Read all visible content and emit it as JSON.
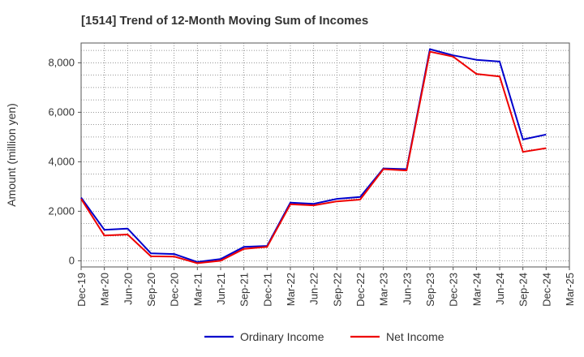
{
  "chart_data": {
    "type": "line",
    "title": "[1514]  Trend of 12-Month Moving Sum of Incomes",
    "xlabel": "",
    "ylabel": "Amount (million yen)",
    "ylim": [
      -250,
      8800
    ],
    "yticks": [
      0,
      2000,
      4000,
      6000,
      8000
    ],
    "ytick_labels": [
      "0",
      "2,000",
      "4,000",
      "6,000",
      "8,000"
    ],
    "grid": true,
    "legend_position": "bottom-center",
    "x": [
      "Dec-19",
      "Mar-20",
      "Jun-20",
      "Sep-20",
      "Dec-20",
      "Mar-21",
      "Jun-21",
      "Sep-21",
      "Dec-21",
      "Mar-22",
      "Jun-22",
      "Sep-22",
      "Dec-22",
      "Mar-23",
      "Jun-23",
      "Sep-23",
      "Dec-23",
      "Mar-24",
      "Jun-24",
      "Sep-24",
      "Dec-24",
      "Mar-25"
    ],
    "series": [
      {
        "name": "Ordinary Income",
        "color": "#0000cc",
        "values": [
          2550,
          1250,
          1300,
          300,
          270,
          -50,
          70,
          560,
          600,
          2350,
          2300,
          2500,
          2580,
          3730,
          3700,
          8550,
          8300,
          8120,
          8050,
          4900,
          5100,
          null
        ]
      },
      {
        "name": "Net Income",
        "color": "#ee0000",
        "values": [
          2500,
          1020,
          1060,
          180,
          170,
          -100,
          0,
          480,
          560,
          2280,
          2240,
          2400,
          2470,
          3700,
          3650,
          8450,
          8250,
          7550,
          7450,
          4400,
          4550,
          null
        ]
      }
    ]
  }
}
